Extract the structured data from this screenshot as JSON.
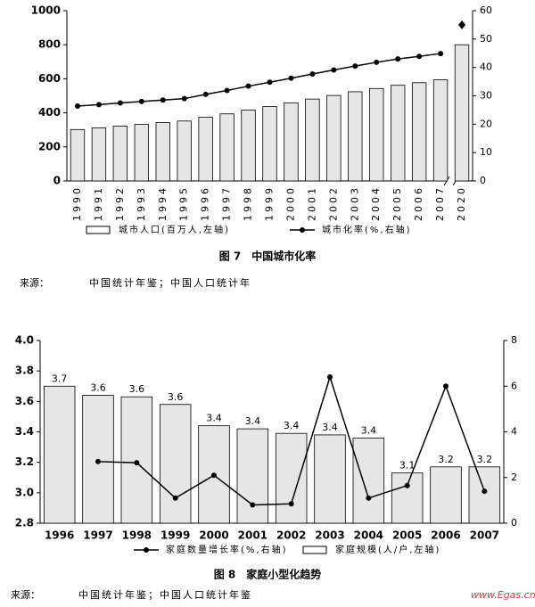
{
  "chart_data": [
    {
      "type": "bar",
      "title": "图 7　中国城市化率",
      "categories": [
        "1990",
        "1991",
        "1992",
        "1993",
        "1994",
        "1995",
        "1996",
        "1997",
        "1998",
        "1999",
        "2000",
        "2001",
        "2002",
        "2003",
        "2004",
        "2005",
        "2006",
        "2007",
        "2020"
      ],
      "xlabel_rotate": -90,
      "axis_break": true,
      "legend": "bottom",
      "series": [
        {
          "name": "城市人口(百万人,左轴)",
          "type": "bar",
          "color": "#e6e6e6",
          "values": [
            302,
            312,
            322,
            332,
            343,
            352,
            374,
            394,
            416,
            437,
            459,
            481,
            502,
            524,
            543,
            562,
            577,
            594,
            800
          ]
        },
        {
          "name": "城市化率(%,右轴)",
          "type": "line",
          "axis": "y2",
          "color": "#000000",
          "values": [
            26.4,
            26.9,
            27.5,
            28.0,
            28.5,
            29.0,
            30.5,
            31.9,
            33.4,
            34.8,
            36.2,
            37.7,
            39.1,
            40.5,
            41.8,
            43.0,
            43.9,
            44.9,
            55
          ]
        }
      ],
      "ylim": [
        0,
        1000
      ],
      "yticks": [
        0,
        200,
        400,
        600,
        800,
        1000
      ],
      "y2lim": [
        0,
        60
      ],
      "y2ticks": [
        0,
        10,
        20,
        30,
        40,
        50,
        60
      ],
      "source_label": "来源：",
      "source": "中国统计年鉴；中国人口统计年"
    },
    {
      "type": "bar",
      "title": "图 8　家庭小型化趋势",
      "categories": [
        "1996",
        "1997",
        "1998",
        "1999",
        "2000",
        "2001",
        "2002",
        "2003",
        "2004",
        "2005",
        "2006",
        "2007"
      ],
      "legend": "bottom",
      "series": [
        {
          "name": "家庭数量增长率(%,右轴)",
          "type": "line",
          "axis": "y2",
          "color": "#000000",
          "values": [
            null,
            2.7,
            2.65,
            1.1,
            2.1,
            0.8,
            0.85,
            6.4,
            1.1,
            1.65,
            6.0,
            1.4
          ]
        },
        {
          "name": "家庭规模(人/户,左轴)",
          "type": "bar",
          "color": "#e6e6e6",
          "values": [
            3.7,
            3.64,
            3.63,
            3.58,
            3.44,
            3.42,
            3.39,
            3.38,
            3.36,
            3.13,
            3.17,
            3.17
          ],
          "value_labels": [
            "3.7",
            "3.6",
            "3.6",
            "3.6",
            "3.4",
            "3.4",
            "3.4",
            "3.4",
            "3.4",
            "3.1",
            "3.2",
            "3.2"
          ]
        }
      ],
      "ylim": [
        2.8,
        4.0
      ],
      "yticks": [
        2.8,
        {
          "value": 3,
          "label": "3.0"
        },
        3.2,
        3.4,
        3.6,
        3.8,
        {
          "value": 4,
          "label": "4.0"
        }
      ],
      "y2lim": [
        0,
        8
      ],
      "y2ticks": [
        0,
        2,
        4,
        6,
        8
      ],
      "source_label": "来源：",
      "source": "中国统计年鉴；中国人口统计年鉴"
    }
  ],
  "watermark": "www.Egas.cn"
}
